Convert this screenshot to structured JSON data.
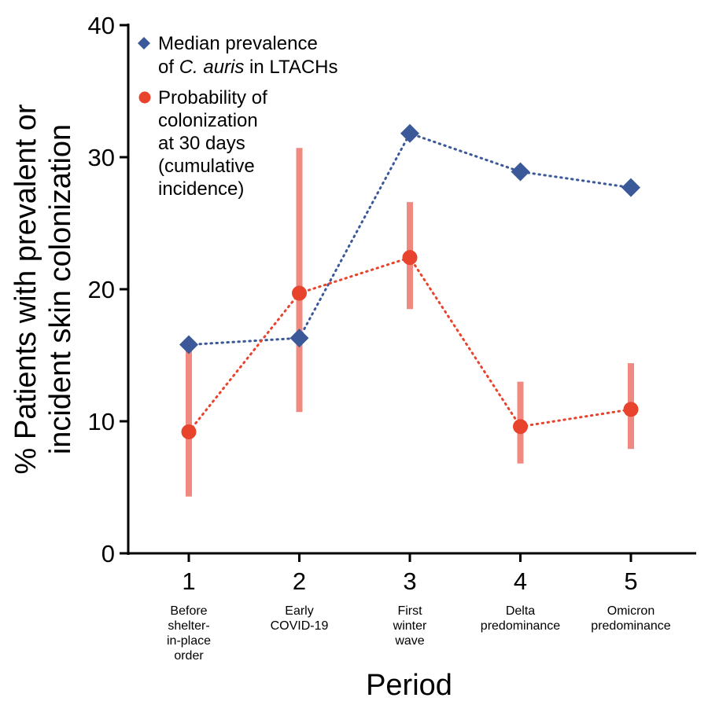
{
  "chart_data": {
    "type": "scatter",
    "title": "",
    "xlabel": "Period",
    "ylabel_lines": [
      "% Patients with prevalent or",
      "incident skin colonization"
    ],
    "ylim": [
      0,
      40
    ],
    "y_ticks": [
      "0",
      "10",
      "20",
      "30",
      "40"
    ],
    "x": [
      1,
      2,
      3,
      4,
      5
    ],
    "x_tick_labels": [
      "1",
      "2",
      "3",
      "4",
      "5"
    ],
    "period_labels": [
      [
        "Before",
        "shelter-",
        "in-place",
        "order"
      ],
      [
        "Early",
        "COVID-19"
      ],
      [
        "First",
        "winter",
        "wave"
      ],
      [
        "Delta",
        "predominance"
      ],
      [
        "Omicron",
        "predominance"
      ]
    ],
    "series": [
      {
        "name": "Median prevalence of C. auris in LTACHs",
        "legend_lines": [
          [
            "Median prevalence"
          ],
          [
            "of ",
            "C. auris",
            " in LTACHs"
          ]
        ],
        "marker": "diamond",
        "color": "#3b5998",
        "values": [
          15.8,
          16.3,
          31.8,
          28.9,
          27.7
        ]
      },
      {
        "name": "Probability of colonization at 30 days (cumulative incidence)",
        "legend_lines": [
          "Probability of",
          "colonization",
          "at 30 days",
          "(cumulative",
          "incidence)"
        ],
        "marker": "circle",
        "color": "#e8432d",
        "error_color": "#f08a80",
        "values": [
          9.2,
          19.7,
          22.4,
          9.6,
          10.9
        ],
        "lower": [
          4.3,
          10.7,
          18.5,
          6.8,
          7.9
        ],
        "upper": [
          15.7,
          30.7,
          26.6,
          13.0,
          14.4
        ]
      }
    ]
  }
}
